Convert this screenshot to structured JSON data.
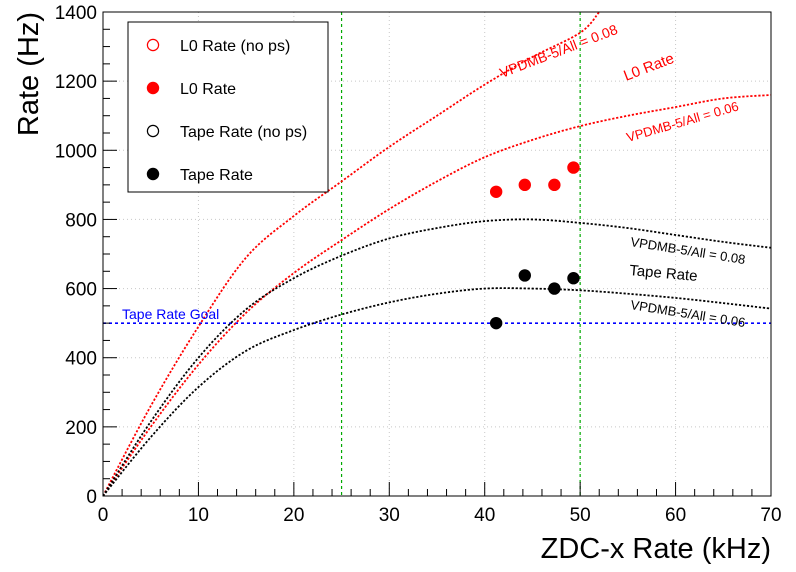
{
  "chart_data": {
    "type": "scatter",
    "title": "",
    "xlabel": "ZDC-x Rate (kHz)",
    "ylabel": "Rate (Hz)",
    "xlim": [
      0,
      70
    ],
    "ylim": [
      0,
      1400
    ],
    "x_ticks": [
      0,
      10,
      20,
      30,
      40,
      50,
      60,
      70
    ],
    "y_ticks": [
      0,
      200,
      400,
      600,
      800,
      1000,
      1200,
      1400
    ],
    "grid": true,
    "legend_position": "top-left",
    "series": [
      {
        "name": "L0 Rate (no ps)",
        "color": "#ff0000",
        "marker": "open-circle",
        "points": []
      },
      {
        "name": "L0 Rate",
        "color": "#ff0000",
        "marker": "filled-circle",
        "points": [
          [
            41.2,
            880
          ],
          [
            44.2,
            900
          ],
          [
            47.3,
            900
          ],
          [
            49.3,
            950
          ]
        ]
      },
      {
        "name": "Tape Rate (no ps)",
        "color": "#000000",
        "marker": "open-circle",
        "points": []
      },
      {
        "name": "Tape Rate",
        "color": "#000000",
        "marker": "filled-circle",
        "points": [
          [
            41.2,
            500
          ],
          [
            44.2,
            638
          ],
          [
            47.3,
            600
          ],
          [
            49.3,
            630
          ]
        ]
      }
    ],
    "curves": [
      {
        "label": "VPDMB-5/All = 0.08",
        "group": "L0 Rate",
        "color": "#ff0000",
        "points": [
          [
            0,
            0
          ],
          [
            5,
            260
          ],
          [
            10,
            490
          ],
          [
            15,
            690
          ],
          [
            20,
            810
          ],
          [
            25,
            910
          ],
          [
            30,
            1010
          ],
          [
            35,
            1100
          ],
          [
            40,
            1190
          ],
          [
            45,
            1270
          ],
          [
            50,
            1340
          ],
          [
            52,
            1400
          ]
        ]
      },
      {
        "label": "VPDMB-5/All = 0.06",
        "group": "L0 Rate",
        "color": "#ff0000",
        "points": [
          [
            0,
            0
          ],
          [
            5,
            200
          ],
          [
            10,
            380
          ],
          [
            15,
            530
          ],
          [
            20,
            645
          ],
          [
            25,
            740
          ],
          [
            30,
            830
          ],
          [
            35,
            910
          ],
          [
            40,
            980
          ],
          [
            45,
            1030
          ],
          [
            50,
            1070
          ],
          [
            55,
            1100
          ],
          [
            60,
            1125
          ],
          [
            65,
            1150
          ],
          [
            70,
            1160
          ]
        ]
      },
      {
        "label": "VPDMB-5/All = 0.08",
        "group": "Tape Rate",
        "color": "#000000",
        "points": [
          [
            0,
            0
          ],
          [
            5,
            215
          ],
          [
            10,
            400
          ],
          [
            15,
            540
          ],
          [
            20,
            630
          ],
          [
            25,
            695
          ],
          [
            30,
            745
          ],
          [
            35,
            775
          ],
          [
            40,
            795
          ],
          [
            45,
            800
          ],
          [
            50,
            790
          ],
          [
            55,
            775
          ],
          [
            60,
            755
          ],
          [
            65,
            735
          ],
          [
            70,
            718
          ]
        ]
      },
      {
        "label": "VPDMB-5/All = 0.06",
        "group": "Tape Rate",
        "color": "#000000",
        "points": [
          [
            0,
            0
          ],
          [
            5,
            170
          ],
          [
            10,
            315
          ],
          [
            15,
            420
          ],
          [
            20,
            480
          ],
          [
            25,
            525
          ],
          [
            30,
            560
          ],
          [
            35,
            585
          ],
          [
            40,
            600
          ],
          [
            45,
            600
          ],
          [
            50,
            595
          ],
          [
            55,
            585
          ],
          [
            60,
            573
          ],
          [
            65,
            558
          ],
          [
            70,
            542
          ]
        ]
      }
    ],
    "reference_lines": [
      {
        "axis": "y",
        "value": 500,
        "label": "Tape Rate Goal",
        "color": "#0000ff"
      },
      {
        "axis": "x",
        "value": 25,
        "color": "#00aa00"
      },
      {
        "axis": "x",
        "value": 50,
        "color": "#00aa00"
      }
    ],
    "annotations": [
      {
        "text": "VPDMB-5/All = 0.08",
        "color": "#ff0000"
      },
      {
        "text": "L0 Rate",
        "color": "#ff0000"
      },
      {
        "text": "VPDMB-5/All = 0.06",
        "color": "#ff0000"
      },
      {
        "text": "VPDMB-5/All = 0.08",
        "color": "#000000"
      },
      {
        "text": "Tape Rate",
        "color": "#000000"
      },
      {
        "text": "VPDMB-5/All = 0.06",
        "color": "#000000"
      }
    ]
  }
}
